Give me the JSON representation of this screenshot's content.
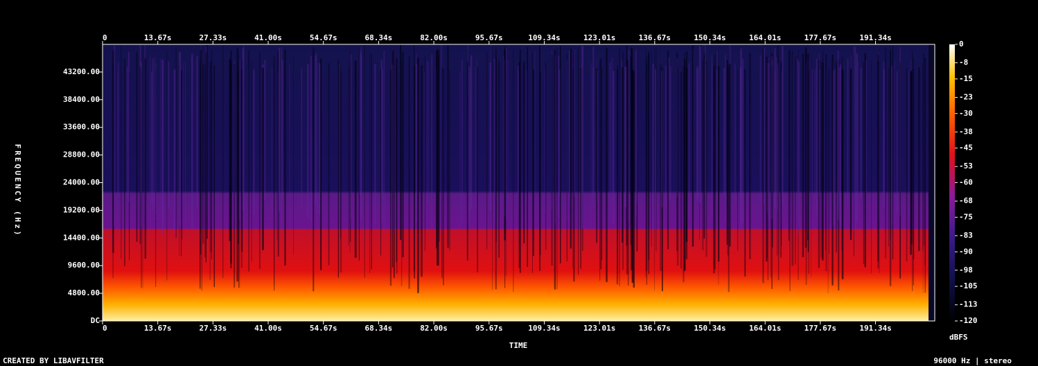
{
  "chart_data": {
    "type": "spectrogram",
    "xlabel": "TIME",
    "ylabel": "FREQUENCY (Hz)",
    "xlim": [
      0,
      206
    ],
    "xticks": [
      0,
      {
        "value": 13.67,
        "label": "13.67s"
      },
      {
        "value": 27.33,
        "label": "27.33s"
      },
      {
        "value": 41,
        "label": "41.00s"
      },
      {
        "value": 54.67,
        "label": "54.67s"
      },
      {
        "value": 68.34,
        "label": "68.34s"
      },
      {
        "value": 82,
        "label": "82.00s"
      },
      {
        "value": 95.67,
        "label": "95.67s"
      },
      {
        "value": 109.34,
        "label": "109.34s"
      },
      {
        "value": 123.01,
        "label": "123.01s"
      },
      {
        "value": 136.67,
        "label": "136.67s"
      },
      {
        "value": 150.34,
        "label": "150.34s"
      },
      {
        "value": 164.01,
        "label": "164.01s"
      },
      {
        "value": 177.67,
        "label": "177.67s"
      },
      {
        "value": 191.34,
        "label": "191.34s"
      }
    ],
    "ylim": [
      0,
      48000
    ],
    "yticks": [
      {
        "value": 0,
        "label": "DC"
      },
      {
        "value": 4800,
        "label": "4800.00"
      },
      {
        "value": 9600,
        "label": "9600.00"
      },
      {
        "value": 14400,
        "label": "14400.00"
      },
      {
        "value": 19200,
        "label": "19200.00"
      },
      {
        "value": 24000,
        "label": "24000.00"
      },
      {
        "value": 28800,
        "label": "28800.00"
      },
      {
        "value": 33600,
        "label": "33600.00"
      },
      {
        "value": 38400,
        "label": "38400.00"
      },
      {
        "value": 43200,
        "label": "43200.00"
      }
    ],
    "colorbar": {
      "label": "dBFS",
      "lim": [
        -120,
        0
      ],
      "ticks": [
        0,
        -8,
        -15,
        -23,
        -30,
        -38,
        -45,
        -53,
        -60,
        -68,
        -75,
        -83,
        -90,
        -98,
        -105,
        -113,
        -120
      ]
    },
    "footer_left": "CREATED BY LIBAVFILTER",
    "footer_right": "96000 Hz | stereo"
  }
}
